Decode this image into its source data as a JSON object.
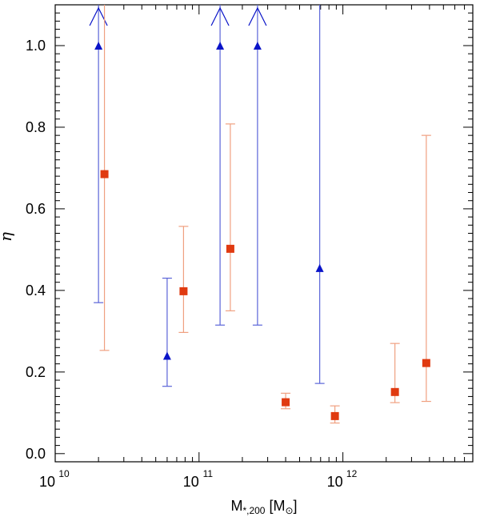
{
  "chart_data": {
    "type": "scatter",
    "xlabel": "M",
    "xlabel_sub": "*,200",
    "xlabel_units_open": "[M",
    "xlabel_units_sym": "⊙",
    "xlabel_units_close": "]",
    "ylabel": "η",
    "xscale": "log",
    "xlim": [
      10000000000.0,
      8000000000000.0
    ],
    "ylim": [
      -0.02,
      1.1
    ],
    "x_ticks": [
      {
        "value": 10000000000.0,
        "base": "10",
        "exp": "10"
      },
      {
        "value": 100000000000.0,
        "base": "10",
        "exp": "11"
      },
      {
        "value": 1000000000000.0,
        "base": "10",
        "exp": "12"
      }
    ],
    "y_ticks": [
      {
        "value": 0.0,
        "label": "0.0"
      },
      {
        "value": 0.2,
        "label": "0.2"
      },
      {
        "value": 0.4,
        "label": "0.4"
      },
      {
        "value": 0.6,
        "label": "0.6"
      },
      {
        "value": 0.8,
        "label": "0.8"
      },
      {
        "value": 1.0,
        "label": "1.0"
      }
    ],
    "series": [
      {
        "marker": "triangle",
        "color": "#0a14c8",
        "errcolor": "#5a64d8",
        "points": [
          {
            "x": 20000000000.0,
            "y": 1.0,
            "lo": 0.37,
            "hi": null,
            "arrow": true
          },
          {
            "x": 60000000000.0,
            "y": 0.24,
            "lo": 0.165,
            "hi": 0.43,
            "arrow": false
          },
          {
            "x": 140000000000.0,
            "y": 1.0,
            "lo": 0.315,
            "hi": null,
            "arrow": true
          },
          {
            "x": 255000000000.0,
            "y": 1.0,
            "lo": 0.315,
            "hi": null,
            "arrow": true
          },
          {
            "x": 690000000000.0,
            "y": 0.455,
            "lo": 0.172,
            "hi": 1.1,
            "arrow": false
          }
        ]
      },
      {
        "marker": "square",
        "color": "#e03a10",
        "errcolor": "#f0a080",
        "points": [
          {
            "x": 22000000000.0,
            "y": 0.685,
            "lo": 0.253,
            "hi": 1.1
          },
          {
            "x": 78000000000.0,
            "y": 0.398,
            "lo": 0.297,
            "hi": 0.557
          },
          {
            "x": 165000000000.0,
            "y": 0.502,
            "lo": 0.35,
            "hi": 0.808
          },
          {
            "x": 400000000000.0,
            "y": 0.126,
            "lo": 0.11,
            "hi": 0.148
          },
          {
            "x": 880000000000.0,
            "y": 0.092,
            "lo": 0.075,
            "hi": 0.117
          },
          {
            "x": 2300000000000.0,
            "y": 0.151,
            "lo": 0.125,
            "hi": 0.27
          },
          {
            "x": 3800000000000.0,
            "y": 0.222,
            "lo": 0.128,
            "hi": 0.78
          }
        ]
      }
    ]
  }
}
